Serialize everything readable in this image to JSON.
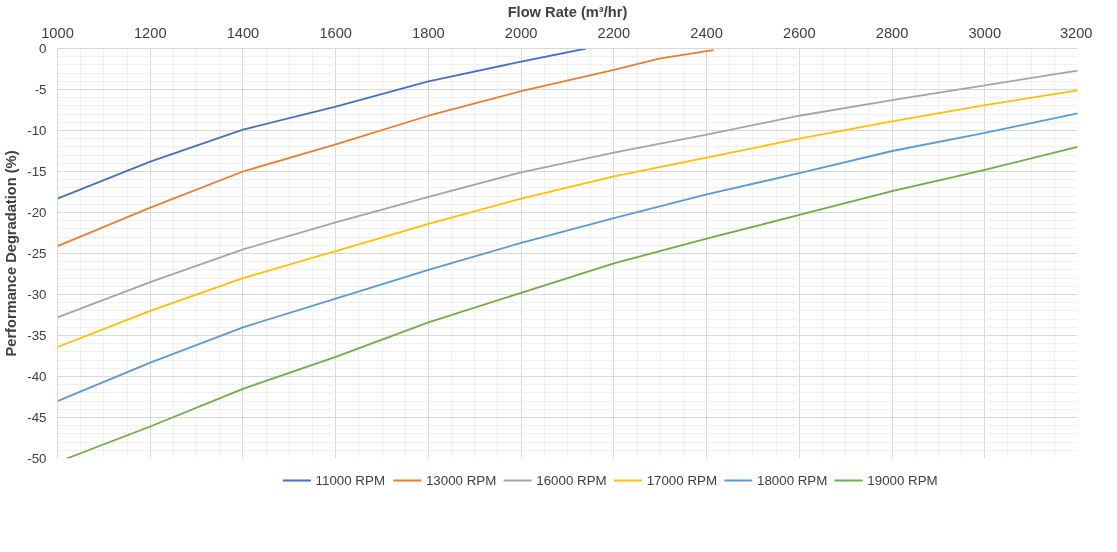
{
  "chart_data": {
    "type": "line",
    "xlabel": "Flow Rate (m³/hr)",
    "ylabel": "Performance Degradation (%)",
    "xlim": [
      1000,
      3200
    ],
    "xticks": [
      1000,
      1200,
      1400,
      1600,
      1800,
      2000,
      2200,
      2400,
      2600,
      2800,
      3000,
      3200
    ],
    "ylim": [
      -50,
      0
    ],
    "yticks": [
      -50,
      -45,
      -40,
      -35,
      -30,
      -25,
      -20,
      -15,
      -10,
      -5,
      0
    ],
    "grid": true,
    "legend": "bottom",
    "marker": "none",
    "line_style": "solid",
    "series": [
      {
        "name": "11000 RPM",
        "color": "#4472c4",
        "x": [
          1000,
          1200,
          1400,
          1600,
          1800,
          2000,
          2140
        ],
        "values": [
          -18.3,
          -13.8,
          -9.9,
          -7.1,
          -4.0,
          -1.6,
          0
        ]
      },
      {
        "name": "13000 RPM",
        "color": "#ed7d31",
        "x": [
          1000,
          1200,
          1400,
          1600,
          1800,
          2000,
          2200,
          2300,
          2415
        ],
        "values": [
          -24.1,
          -19.4,
          -15.0,
          -11.7,
          -8.2,
          -5.2,
          -2.6,
          -1.2,
          -0.2
        ]
      },
      {
        "name": "16000 RPM",
        "color": "#a5a5a5",
        "x": [
          1000,
          1200,
          1400,
          1600,
          1800,
          2000,
          2200,
          2400,
          2600,
          2800,
          3000,
          3200
        ],
        "values": [
          -32.8,
          -28.5,
          -24.5,
          -21.2,
          -18.1,
          -15.1,
          -12.7,
          -10.5,
          -8.2,
          -6.3,
          -4.5,
          -2.7
        ]
      },
      {
        "name": "17000 RPM",
        "color": "#ffc000",
        "x": [
          1000,
          1200,
          1400,
          1600,
          1800,
          2000,
          2200,
          2400,
          2600,
          2800,
          3000,
          3200
        ],
        "values": [
          -36.4,
          -32.0,
          -28.0,
          -24.7,
          -21.4,
          -18.3,
          -15.6,
          -13.3,
          -11.0,
          -8.9,
          -6.9,
          -5.1
        ]
      },
      {
        "name": "18000 RPM",
        "color": "#5b9bd5",
        "x": [
          1000,
          1200,
          1400,
          1600,
          1800,
          2000,
          2200,
          2400,
          2600,
          2800,
          3000,
          3200
        ],
        "values": [
          -43.0,
          -38.3,
          -34.0,
          -30.5,
          -27.0,
          -23.7,
          -20.7,
          -17.8,
          -15.2,
          -12.5,
          -10.3,
          -7.9
        ]
      },
      {
        "name": "19000 RPM",
        "color": "#70ad47",
        "x": [
          1020,
          1200,
          1400,
          1600,
          1800,
          2000,
          2200,
          2400,
          2600,
          2800,
          3000,
          3200
        ],
        "values": [
          -50,
          -46.1,
          -41.5,
          -37.6,
          -33.4,
          -29.8,
          -26.2,
          -23.2,
          -20.3,
          -17.4,
          -14.8,
          -12.0
        ]
      }
    ]
  }
}
